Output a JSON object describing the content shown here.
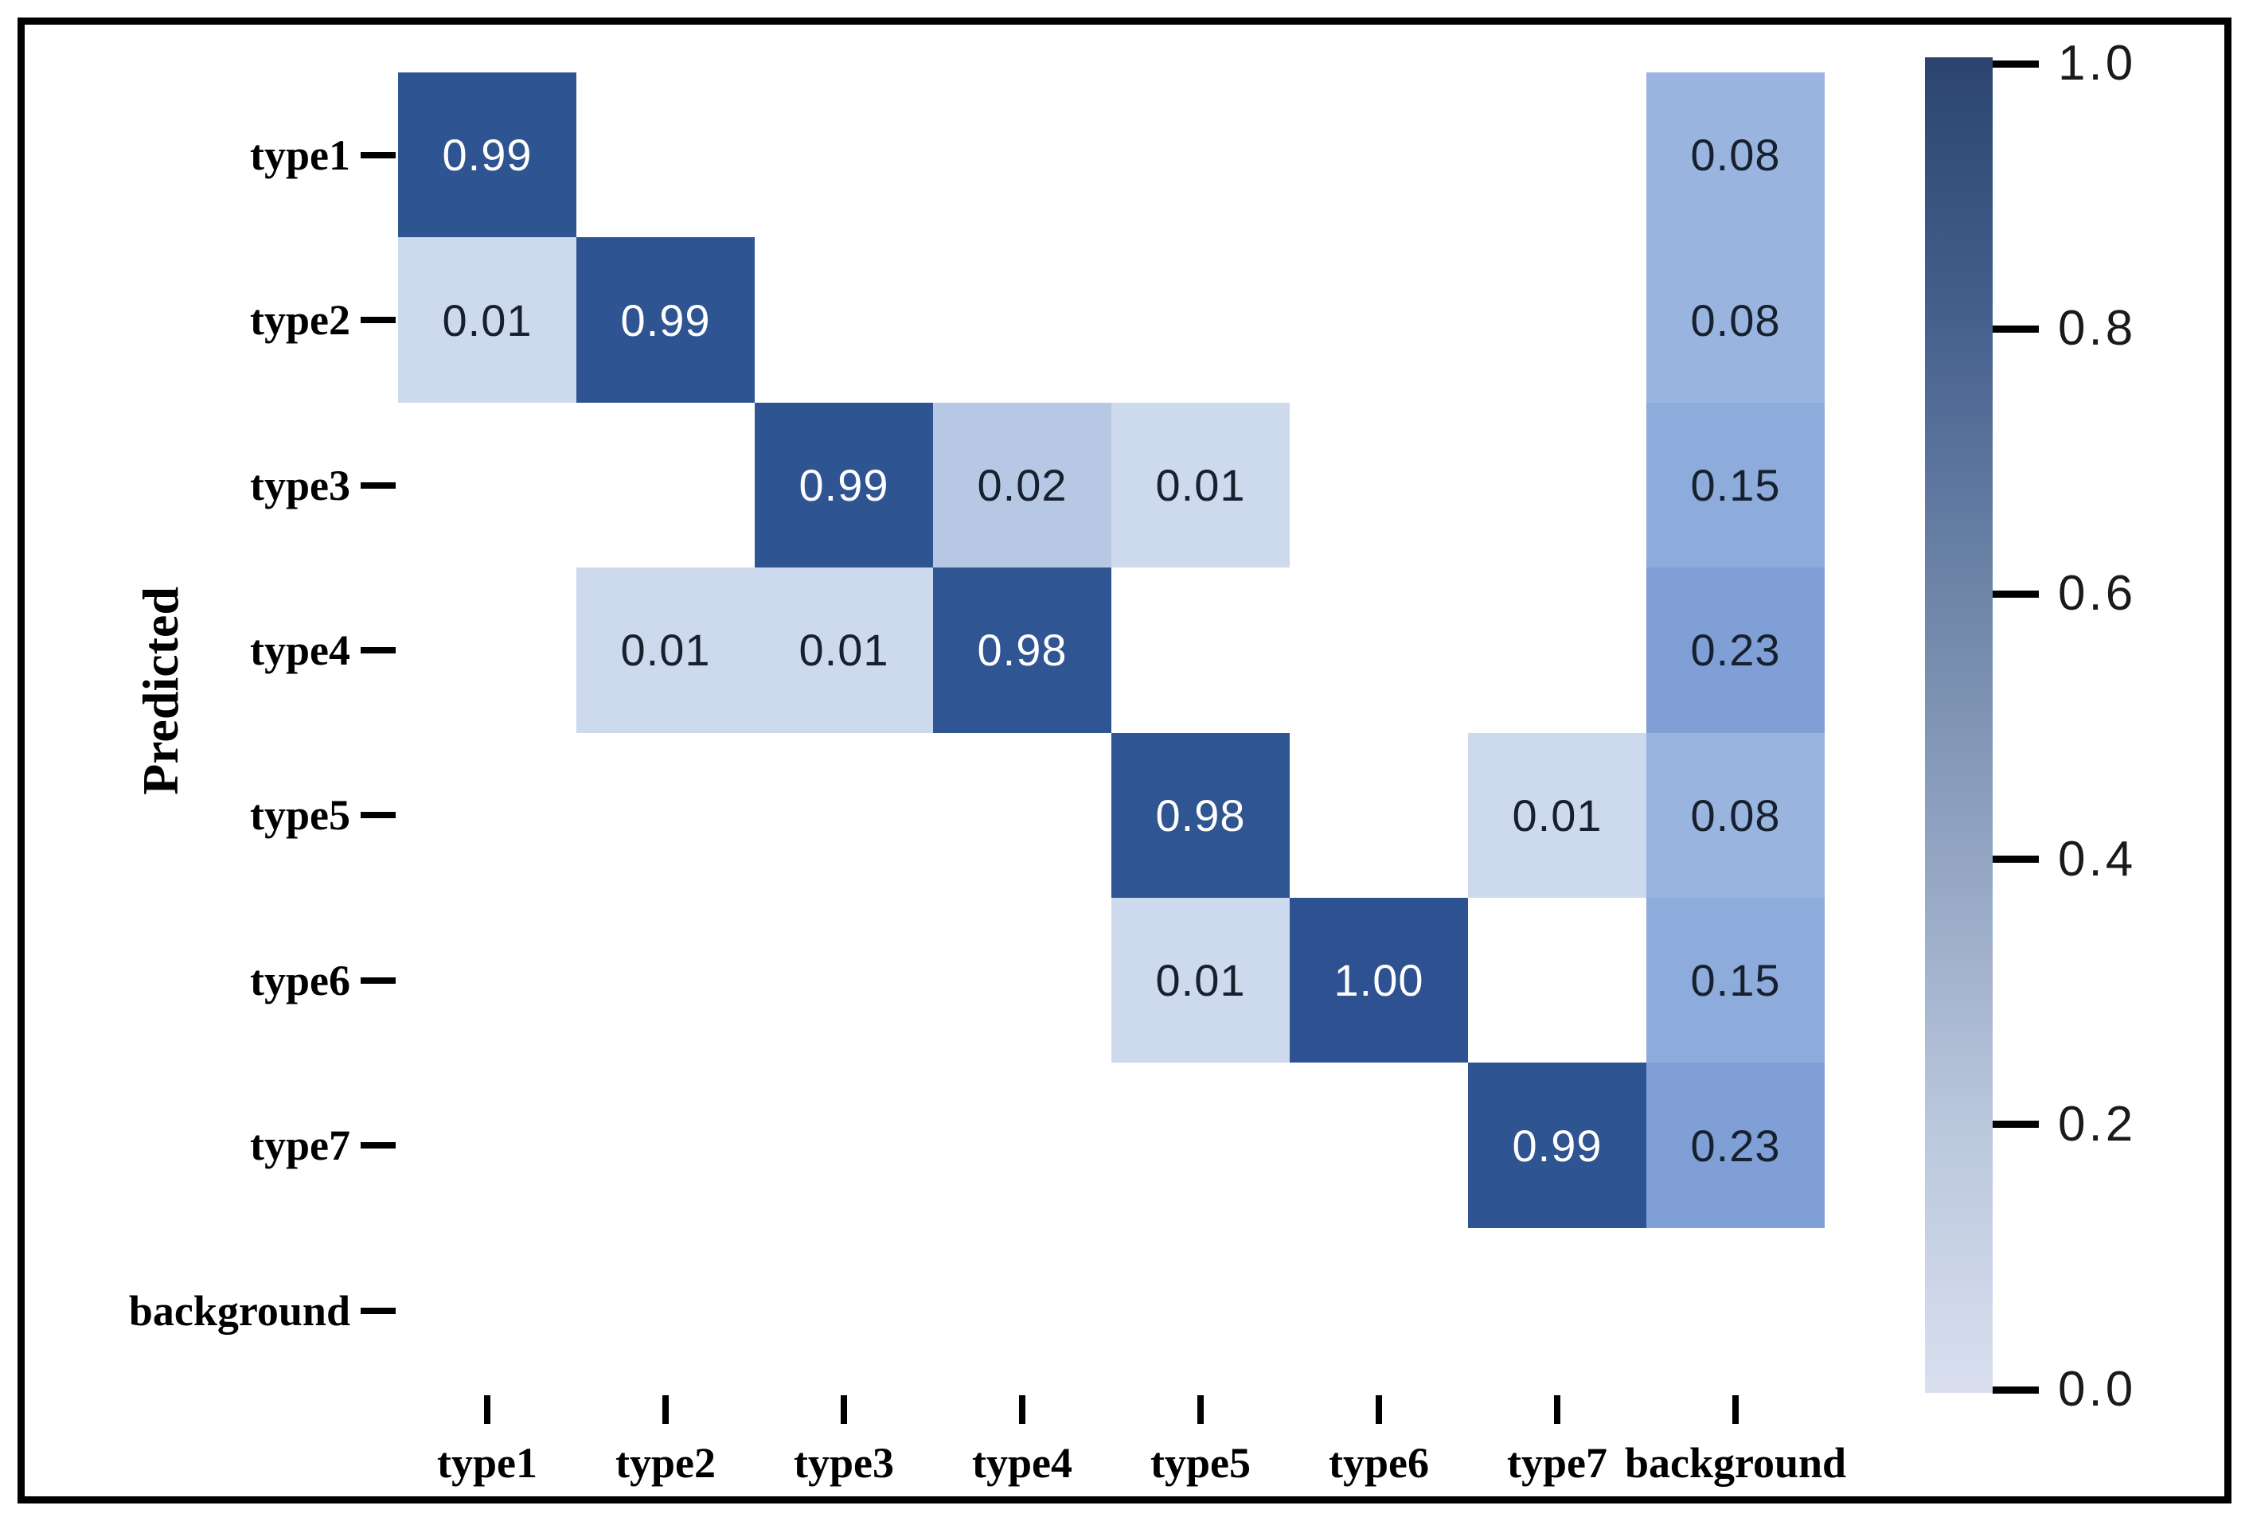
{
  "chart_data": {
    "type": "heatmap",
    "title": "",
    "ylabel": "Predicted",
    "xlabel": "",
    "x_categories": [
      "type1",
      "type2",
      "type3",
      "type4",
      "type5",
      "type6",
      "type7",
      "background"
    ],
    "y_categories": [
      "type1",
      "type2",
      "type3",
      "type4",
      "type5",
      "type6",
      "type7",
      "background"
    ],
    "matrix": [
      [
        0.99,
        null,
        null,
        null,
        null,
        null,
        null,
        0.08
      ],
      [
        0.01,
        0.99,
        null,
        null,
        null,
        null,
        null,
        0.08
      ],
      [
        null,
        null,
        0.99,
        0.02,
        0.01,
        null,
        null,
        0.15
      ],
      [
        null,
        0.01,
        0.01,
        0.98,
        null,
        null,
        null,
        0.23
      ],
      [
        null,
        null,
        null,
        null,
        0.98,
        null,
        0.01,
        0.08
      ],
      [
        null,
        null,
        null,
        null,
        0.01,
        1.0,
        null,
        0.15
      ],
      [
        null,
        null,
        null,
        null,
        null,
        null,
        0.99,
        0.23
      ],
      [
        null,
        null,
        null,
        null,
        null,
        null,
        null,
        null
      ]
    ],
    "annotations": [
      [
        "0.99",
        null,
        null,
        null,
        null,
        null,
        null,
        "0.08"
      ],
      [
        "0.01",
        "0.99",
        null,
        null,
        null,
        null,
        null,
        "0.08"
      ],
      [
        null,
        null,
        "0.99",
        "0.02",
        "0.01",
        null,
        null,
        "0.15"
      ],
      [
        null,
        "0.01",
        "0.01",
        "0.98",
        null,
        null,
        null,
        "0.23"
      ],
      [
        null,
        null,
        null,
        null,
        "0.98",
        null,
        "0.01",
        "0.08"
      ],
      [
        null,
        null,
        null,
        null,
        "0.01",
        "1.00",
        null,
        "0.15"
      ],
      [
        null,
        null,
        null,
        null,
        null,
        null,
        "0.99",
        "0.23"
      ],
      [
        null,
        null,
        null,
        null,
        null,
        null,
        null,
        null
      ]
    ],
    "colorbar": {
      "position": "right",
      "min": 0.0,
      "max": 1.0,
      "tick_labels": [
        "1.0",
        "0.8",
        "0.6",
        "0.4",
        "0.2",
        "0.0"
      ]
    },
    "grid": false,
    "empty_cells_rendered_white": true
  },
  "colors": {
    "background": "#ffffff",
    "frame": "#000000",
    "annot_on_dark": "#ffffff",
    "annot_on_light": "#16202e",
    "value_colors": {
      "1.00": "#2d5191",
      "0.99": "#2e5492",
      "0.98": "#2f5593",
      "0.23": "#7f9fd6",
      "0.15": "#8dabdb",
      "0.08": "#9ab4e0",
      "0.02": "#b7c8e5",
      "0.01": "#cdd9ed"
    },
    "colorbar_stops": [
      "#2b4570",
      "#47618f",
      "#6e85a8",
      "#93a5c3",
      "#bac7dd",
      "#d9dfef"
    ]
  }
}
